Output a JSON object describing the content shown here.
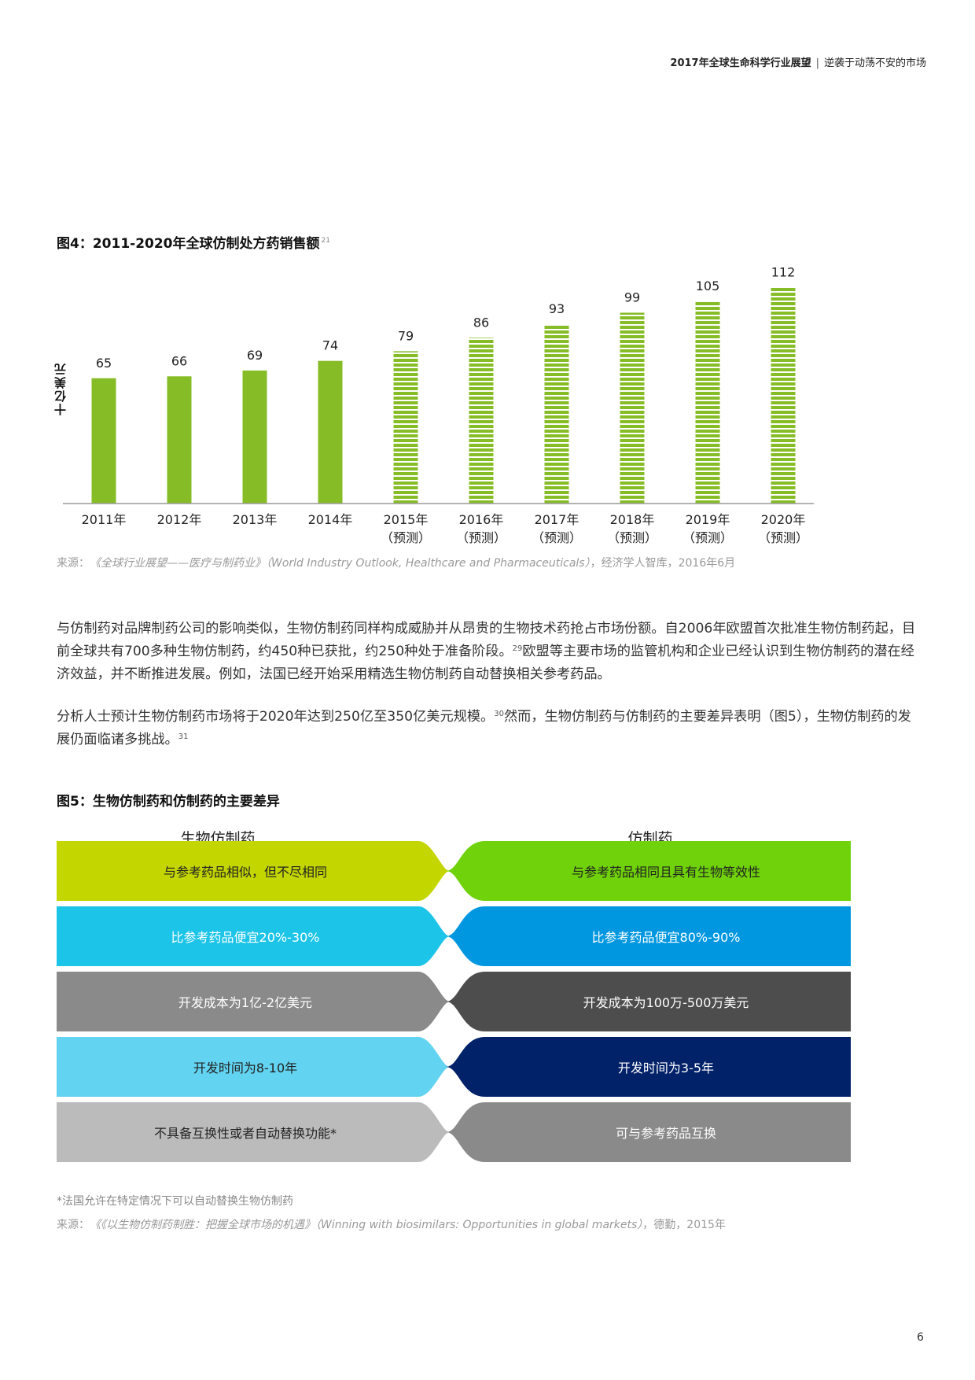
{
  "header": {
    "report": "2017年全球生命科学行业展望",
    "subtitle": "逆袭于动荡不安的市场"
  },
  "figure4": {
    "title": "图4：2011-2020年全球仿制处方药销售额",
    "ref": "21",
    "source_prefix": "来源：",
    "source_italic": "《全球行业展望——医疗与制药业》（World Industry Outlook, Healthcare and Pharmaceuticals）",
    "source_suffix": "，经济学人智库，2016年6月"
  },
  "chart_data": {
    "type": "bar",
    "title": "图4：2011-2020年全球仿制处方药销售额",
    "ylabel": "十亿美元",
    "xlabel": "",
    "categories": [
      "2011年",
      "2012年",
      "2013年",
      "2014年",
      "2015年",
      "2016年",
      "2017年",
      "2018年",
      "2019年",
      "2020年"
    ],
    "category_notes": [
      "",
      "",
      "",
      "",
      "（预测）",
      "（预测）",
      "（预测）",
      "（预测）",
      "（预测）",
      "（预测）"
    ],
    "values": [
      65,
      66,
      69,
      74,
      79,
      86,
      93,
      99,
      105,
      112
    ],
    "forecast": [
      false,
      false,
      false,
      false,
      true,
      true,
      true,
      true,
      true,
      true
    ],
    "ylim": [
      0,
      120
    ],
    "color": "#86bc25",
    "grid": false,
    "legend": "none"
  },
  "paragraphs": {
    "p1_a": "与仿制药对品牌制药公司的影响类似，生物仿制药同样构成威胁并从昂贵的生物技术药抢占市场份额。自2006年欧盟首次批准生物仿制药起，目前全球共有700多种生物仿制药，约450种已获批，约250种处于准备阶段。",
    "p1_ref": "29",
    "p1_b": "欧盟等主要市场的监管机构和企业已经认识到生物仿制药的潜在经济效益，并不断推进发展。例如，法国已经开始采用精选生物仿制药自动替换相关参考药品。",
    "p2_a": "分析人士预计生物仿制药市场将于2020年达到250亿至350亿美元规模。",
    "p2_ref1": "30",
    "p2_b": "然而，生物仿制药与仿制药的主要差异表明（图5），生物仿制药的发展仍面临诸多挑战。",
    "p2_ref2": "31"
  },
  "figure5": {
    "title": "图5：生物仿制药和仿制药的主要差异",
    "left_header": "生物仿制药",
    "right_header": "仿制药",
    "rows": [
      {
        "left": "与参考药品相似，但不尽相同",
        "right": "与参考药品相同且具有生物等效性",
        "left_color": "#c4d600",
        "right_color": "#6fd20a",
        "left_text_color": "#222222",
        "right_text_color": "#222222"
      },
      {
        "left": "比参考药品便宜20%-30%",
        "right": "比参考药品便宜80%-90%",
        "left_color": "#1cc4e8",
        "right_color": "#0097e0",
        "left_text_color": "#ffffff",
        "right_text_color": "#ffffff"
      },
      {
        "left": "开发成本为1亿-2亿美元",
        "right": "开发成本为100万-500万美元",
        "left_color": "#8a8a8a",
        "right_color": "#4d4d4d",
        "left_text_color": "#ffffff",
        "right_text_color": "#ffffff"
      },
      {
        "left": "开发时间为8-10年",
        "right": "开发时间为3-5年",
        "left_color": "#62d3f0",
        "right_color": "#012169",
        "left_text_color": "#222222",
        "right_text_color": "#ffffff"
      },
      {
        "left": "不具备互换性或者自动替换功能*",
        "right": "可与参考药品互换",
        "left_color": "#bbbbbb",
        "right_color": "#8a8a8a",
        "left_text_color": "#222222",
        "right_text_color": "#ffffff"
      }
    ],
    "footnote": "*法国允许在特定情况下可以自动替换生物仿制药",
    "source_prefix": "来源：",
    "source_italic": "《《以生物仿制药制胜：把握全球市场的机遇》（Winning with biosimilars: Opportunities in global markets）",
    "source_suffix": "，德勤，2015年"
  },
  "page_number": "6"
}
